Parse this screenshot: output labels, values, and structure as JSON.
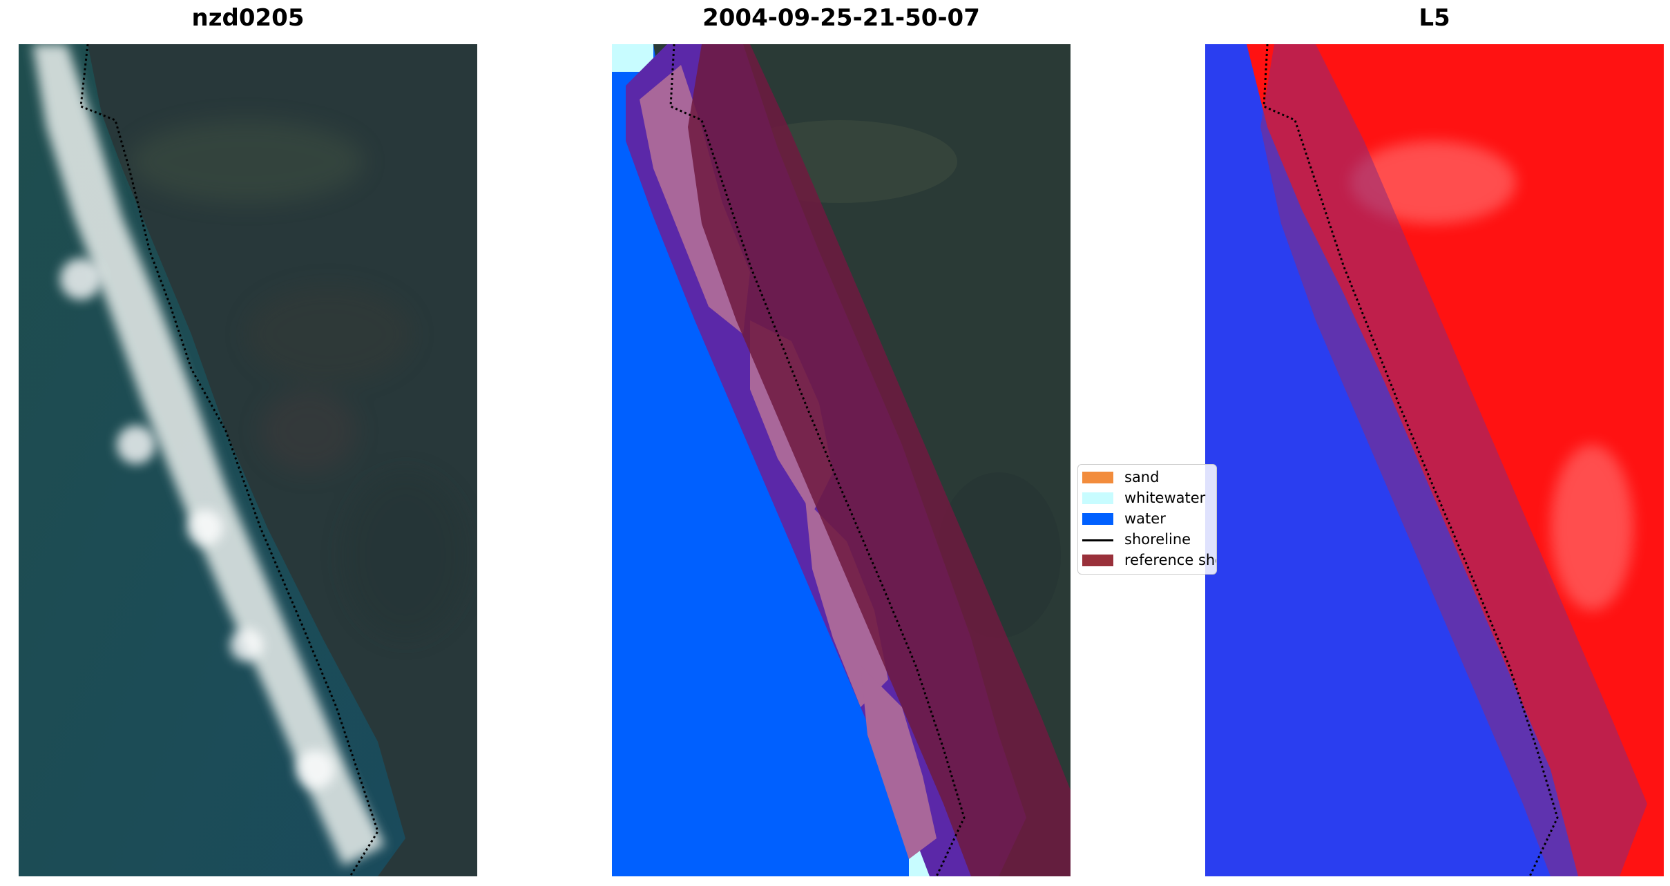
{
  "panels": [
    {
      "title": "nzd0205"
    },
    {
      "title": "2004-09-25-21-50-07"
    },
    {
      "title": "L5"
    }
  ],
  "legend": {
    "items": [
      {
        "label": "sand",
        "color": "#f28c3c",
        "kind": "patch"
      },
      {
        "label": "whitewater",
        "color": "#c8fcff",
        "kind": "patch"
      },
      {
        "label": "water",
        "color": "#0060ff",
        "kind": "patch"
      },
      {
        "label": "shoreline",
        "color": "#000000",
        "kind": "line"
      },
      {
        "label": "reference shoreline buffer",
        "color": "#99303a",
        "kind": "patch"
      }
    ]
  },
  "colors": {
    "land": "#2a3a36",
    "sea": "#1c4a52",
    "surf": "#e8eeee",
    "water_class": "#0060ff",
    "wave_purple": "#5b28a8",
    "beach_pink": "#a9679a",
    "buffer": "#6e1a3f",
    "index_blue": "#2a3ef0",
    "index_red": "#ff1212"
  }
}
